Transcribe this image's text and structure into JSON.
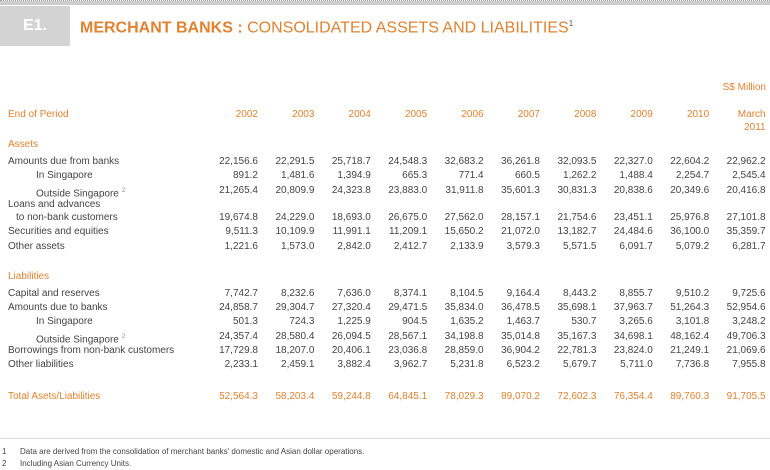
{
  "header": {
    "code": "E1.",
    "title_bold": "MERCHANT BANKS : ",
    "title_regular": "CONSOLIDATED ASSETS AND LIABILITIES",
    "title_note": "1"
  },
  "table": {
    "unit": "S$ Million",
    "period_label": "End of Period",
    "columns": [
      [
        "2002"
      ],
      [
        "2003"
      ],
      [
        "2004"
      ],
      [
        "2005"
      ],
      [
        "2006"
      ],
      [
        "2007"
      ],
      [
        "2008"
      ],
      [
        "2009"
      ],
      [
        "2010"
      ],
      [
        "March",
        "2011"
      ]
    ],
    "sections": [
      {
        "title": "Assets",
        "rows": [
          {
            "label": [
              "Amounts due from banks"
            ],
            "level": 0,
            "values": [
              "22,156.6",
              "22,291.5",
              "25,718.7",
              "24,548.3",
              "32,683.2",
              "36,261.8",
              "32,093.5",
              "22,327.0",
              "22,604.2",
              "22,962.2"
            ]
          },
          {
            "label": [
              "In Singapore"
            ],
            "level": 1,
            "values": [
              "891.2",
              "1,481.6",
              "1,394.9",
              "665.3",
              "771.4",
              "660.5",
              "1,262.2",
              "1,488.4",
              "2,254.7",
              "2,545.4"
            ]
          },
          {
            "label": [
              "Outside Singapore"
            ],
            "note": "2",
            "level": 1,
            "values": [
              "21,265.4",
              "20,809.9",
              "24,323.8",
              "23,883.0",
              "31,911.8",
              "35,601.3",
              "30,831.3",
              "20,838.6",
              "20,349.6",
              "20,416.8"
            ]
          },
          {
            "label": [
              "Loans and advances",
              "to non-bank customers"
            ],
            "level": 0,
            "values": [
              "19,674.8",
              "24,229.0",
              "18,693.0",
              "26,675.0",
              "27,562.0",
              "28,157.1",
              "21,754.6",
              "23,451.1",
              "25,976.8",
              "27,101.8"
            ]
          },
          {
            "label": [
              "Securities and equities"
            ],
            "level": 0,
            "values": [
              "9,511.3",
              "10,109.9",
              "11,991.1",
              "11,209.1",
              "15,650.2",
              "21,072.0",
              "13,182.7",
              "24,484.6",
              "36,100.0",
              "35,359.7"
            ]
          },
          {
            "label": [
              "Other assets"
            ],
            "level": 0,
            "values": [
              "1,221.6",
              "1,573.0",
              "2,842.0",
              "2,412.7",
              "2,133.9",
              "3,579.3",
              "5,571.5",
              "6,091.7",
              "5,079.2",
              "6,281.7"
            ]
          }
        ]
      },
      {
        "title": "Liabilities",
        "rows": [
          {
            "label": [
              "Capital and reserves"
            ],
            "level": 0,
            "values": [
              "7,742.7",
              "8,232.6",
              "7,636.0",
              "8,374.1",
              "8,104.5",
              "9,164.4",
              "8,443.2",
              "8,855.7",
              "9,510.2",
              "9,725.6"
            ]
          },
          {
            "label": [
              "Amounts due to banks"
            ],
            "level": 0,
            "values": [
              "24,858.7",
              "29,304.7",
              "27,320.4",
              "29,471.5",
              "35,834.0",
              "36,478.5",
              "35,698.1",
              "37,963.7",
              "51,264.3",
              "52,954.6"
            ]
          },
          {
            "label": [
              "In Singapore"
            ],
            "level": 1,
            "values": [
              "501.3",
              "724.3",
              "1,225.9",
              "904.5",
              "1,635.2",
              "1,463.7",
              "530.7",
              "3,265.6",
              "3,101.8",
              "3,248.2"
            ]
          },
          {
            "label": [
              "Outside Singapore"
            ],
            "note": "2",
            "level": 1,
            "values": [
              "24,357.4",
              "28,580.4",
              "26,094.5",
              "28,567.1",
              "34,198.8",
              "35,014.8",
              "35,167.3",
              "34,698.1",
              "48,162.4",
              "49,706.3"
            ]
          },
          {
            "label": [
              "Borrowings from non-bank customers"
            ],
            "level": 0,
            "values": [
              "17,729.8",
              "18,207.0",
              "20,406.1",
              "23,036.8",
              "28,859.0",
              "36,904.2",
              "22,781.3",
              "23,824.0",
              "21,249.1",
              "21,069.6"
            ]
          },
          {
            "label": [
              "Other liabilities"
            ],
            "level": 0,
            "values": [
              "2,233.1",
              "2,459.1",
              "3,882.4",
              "3,962.7",
              "5,231.8",
              "6,523.2",
              "5,679.7",
              "5,711.0",
              "7,736.8",
              "7,955.8"
            ]
          }
        ]
      }
    ],
    "total": {
      "label": "Total Asets/Liabilities",
      "values": [
        "52,564.3",
        "58,203.4",
        "59,244.8",
        "64,845.1",
        "78,029.3",
        "89,070.2",
        "72,602.3",
        "76,354.4",
        "89,760.3",
        "91,705.5"
      ]
    }
  },
  "footnotes": [
    {
      "number": "1",
      "text": "Data are derived from the consolidation of merchant banks' domestic and Asian dollar operations."
    },
    {
      "number": "2",
      "text": "Including Asian Currency Units."
    }
  ]
}
